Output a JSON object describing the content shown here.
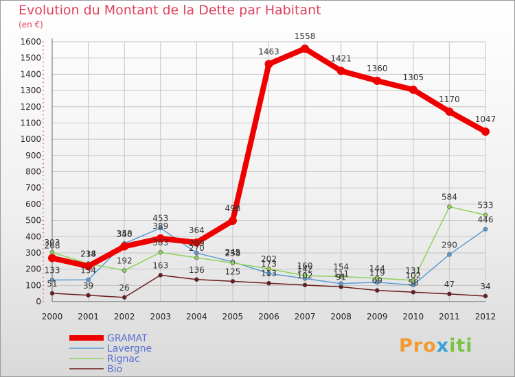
{
  "title": "Evolution du Montant de la Dette par Habitant",
  "unit": "(en €)",
  "logo": {
    "part1": "Pro",
    "part2": "x",
    "part3": "iti"
  },
  "chart_data": {
    "type": "line",
    "title": "Evolution du Montant de la Dette par Habitant",
    "ylabel": "(en €)",
    "x": [
      "2000",
      "2001",
      "2002",
      "2003",
      "2004",
      "2005",
      "2006",
      "2007",
      "2008",
      "2009",
      "2010",
      "2011",
      "2012"
    ],
    "ylim": [
      0,
      1600
    ],
    "yticks": [
      0,
      100,
      200,
      300,
      400,
      500,
      600,
      700,
      800,
      900,
      1000,
      1100,
      1200,
      1300,
      1400,
      1500,
      1600
    ],
    "grid": true,
    "legend_position": "bottom-left",
    "series": [
      {
        "name": "Bio",
        "color": "#6b1a1a",
        "width": 1.5,
        "values": [
          51,
          39,
          26,
          163,
          136,
          125,
          113,
          102,
          91,
          69,
          58,
          47,
          34
        ]
      },
      {
        "name": "Lavergne",
        "color": "#5b9bd5",
        "width": 1.5,
        "values": [
          133,
          134,
          358,
          453,
          299,
          245,
          173,
          142,
          111,
          119,
          102,
          290,
          446
        ]
      },
      {
        "name": "Rignac",
        "color": "#8fd15a",
        "width": 1.5,
        "values": [
          303,
          234,
          192,
          303,
          270,
          238,
          202,
          160,
          154,
          144,
          131,
          584,
          533
        ]
      },
      {
        "name": "GRAMAT",
        "color": "#ee0000",
        "width": 8,
        "values": [
          268,
          218,
          340,
          389,
          364,
          498,
          1463,
          1558,
          1421,
          1360,
          1305,
          1170,
          1047
        ]
      }
    ]
  }
}
